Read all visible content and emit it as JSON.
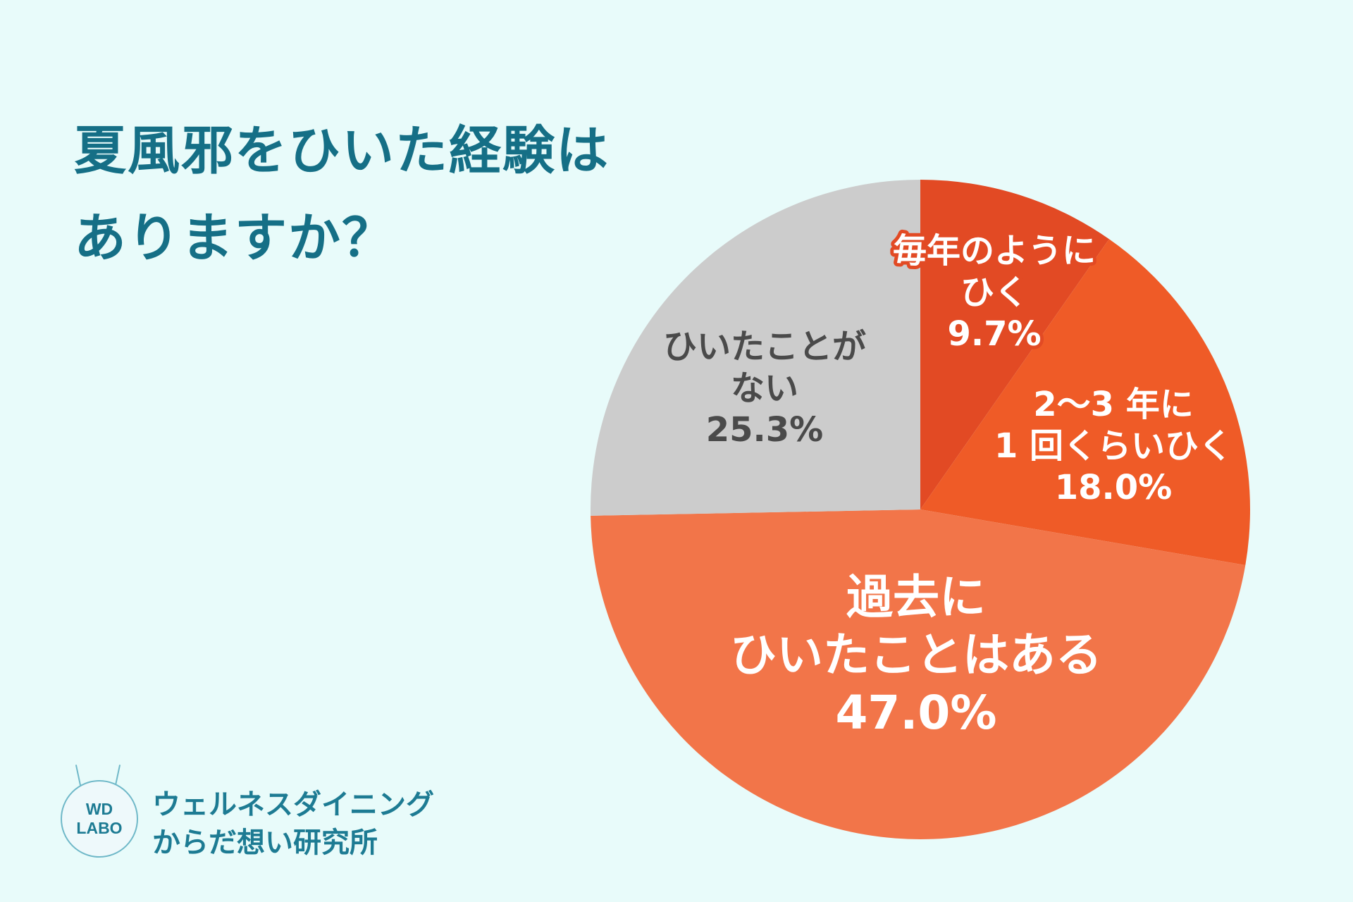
{
  "title": {
    "line1": "夏風邪をひいた経験は",
    "line2": "ありますか？"
  },
  "chart_data": {
    "type": "pie",
    "title": "夏風邪をひいた経験はありますか？",
    "slices": [
      {
        "label": [
          "毎年のように",
          "ひく"
        ],
        "display": "9.7%",
        "value": 9.7,
        "color": "#e24a24",
        "text_color": "#ffffff",
        "outline": true
      },
      {
        "label": [
          "2～3 年に",
          "1 回くらいひく"
        ],
        "display": "18.0%",
        "value": 18.0,
        "color": "#ef5b27",
        "text_color": "#ffffff",
        "outline": false
      },
      {
        "label": [
          "過去に",
          "ひいたことはある"
        ],
        "display": "47.0%",
        "value": 47.0,
        "color": "#f27549",
        "text_color": "#ffffff",
        "outline": false
      },
      {
        "label": [
          "ひいたことが",
          "ない"
        ],
        "display": "25.3%",
        "value": 25.3,
        "color": "#cccccc",
        "text_color": "#4a4a4a",
        "outline": false
      }
    ],
    "start": "12 o'clock",
    "direction": "clockwise"
  },
  "logo": {
    "badge_line1": "WD",
    "badge_line2": "LABO",
    "name_line1": "ウェルネスダイニング",
    "name_line2": "からだ想い研究所"
  },
  "colors": {
    "background": "#e8fbfa",
    "title": "#156f86",
    "logo": "#1d7b93"
  }
}
